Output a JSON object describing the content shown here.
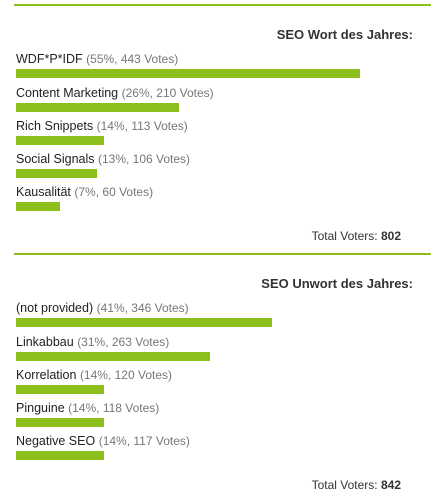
{
  "accent_color": "#8dbf1c",
  "polls": [
    {
      "title": "SEO Wort des Jahres:",
      "options": [
        {
          "label": "WDF*P*IDF",
          "stats": "(55%, 443 Votes)",
          "percent": 55
        },
        {
          "label": "Content Marketing",
          "stats": "(26%, 210 Votes)",
          "percent": 26
        },
        {
          "label": "Rich Snippets",
          "stats": "(14%, 113 Votes)",
          "percent": 14
        },
        {
          "label": "Social Signals",
          "stats": "(13%, 106 Votes)",
          "percent": 13
        },
        {
          "label": "Kausalität",
          "stats": "(7%, 60 Votes)",
          "percent": 7
        }
      ],
      "total_label": "Total Voters:",
      "total_value": "802"
    },
    {
      "title": "SEO Unwort des Jahres:",
      "options": [
        {
          "label": "(not provided)",
          "stats": "(41%, 346 Votes)",
          "percent": 41
        },
        {
          "label": "Linkabbau",
          "stats": "(31%, 263 Votes)",
          "percent": 31
        },
        {
          "label": "Korrelation",
          "stats": "(14%, 120 Votes)",
          "percent": 14
        },
        {
          "label": "Pinguine",
          "stats": "(14%, 118 Votes)",
          "percent": 14
        },
        {
          "label": "Negative SEO",
          "stats": "(14%, 117 Votes)",
          "percent": 14
        }
      ],
      "total_label": "Total Voters:",
      "total_value": "842"
    }
  ]
}
